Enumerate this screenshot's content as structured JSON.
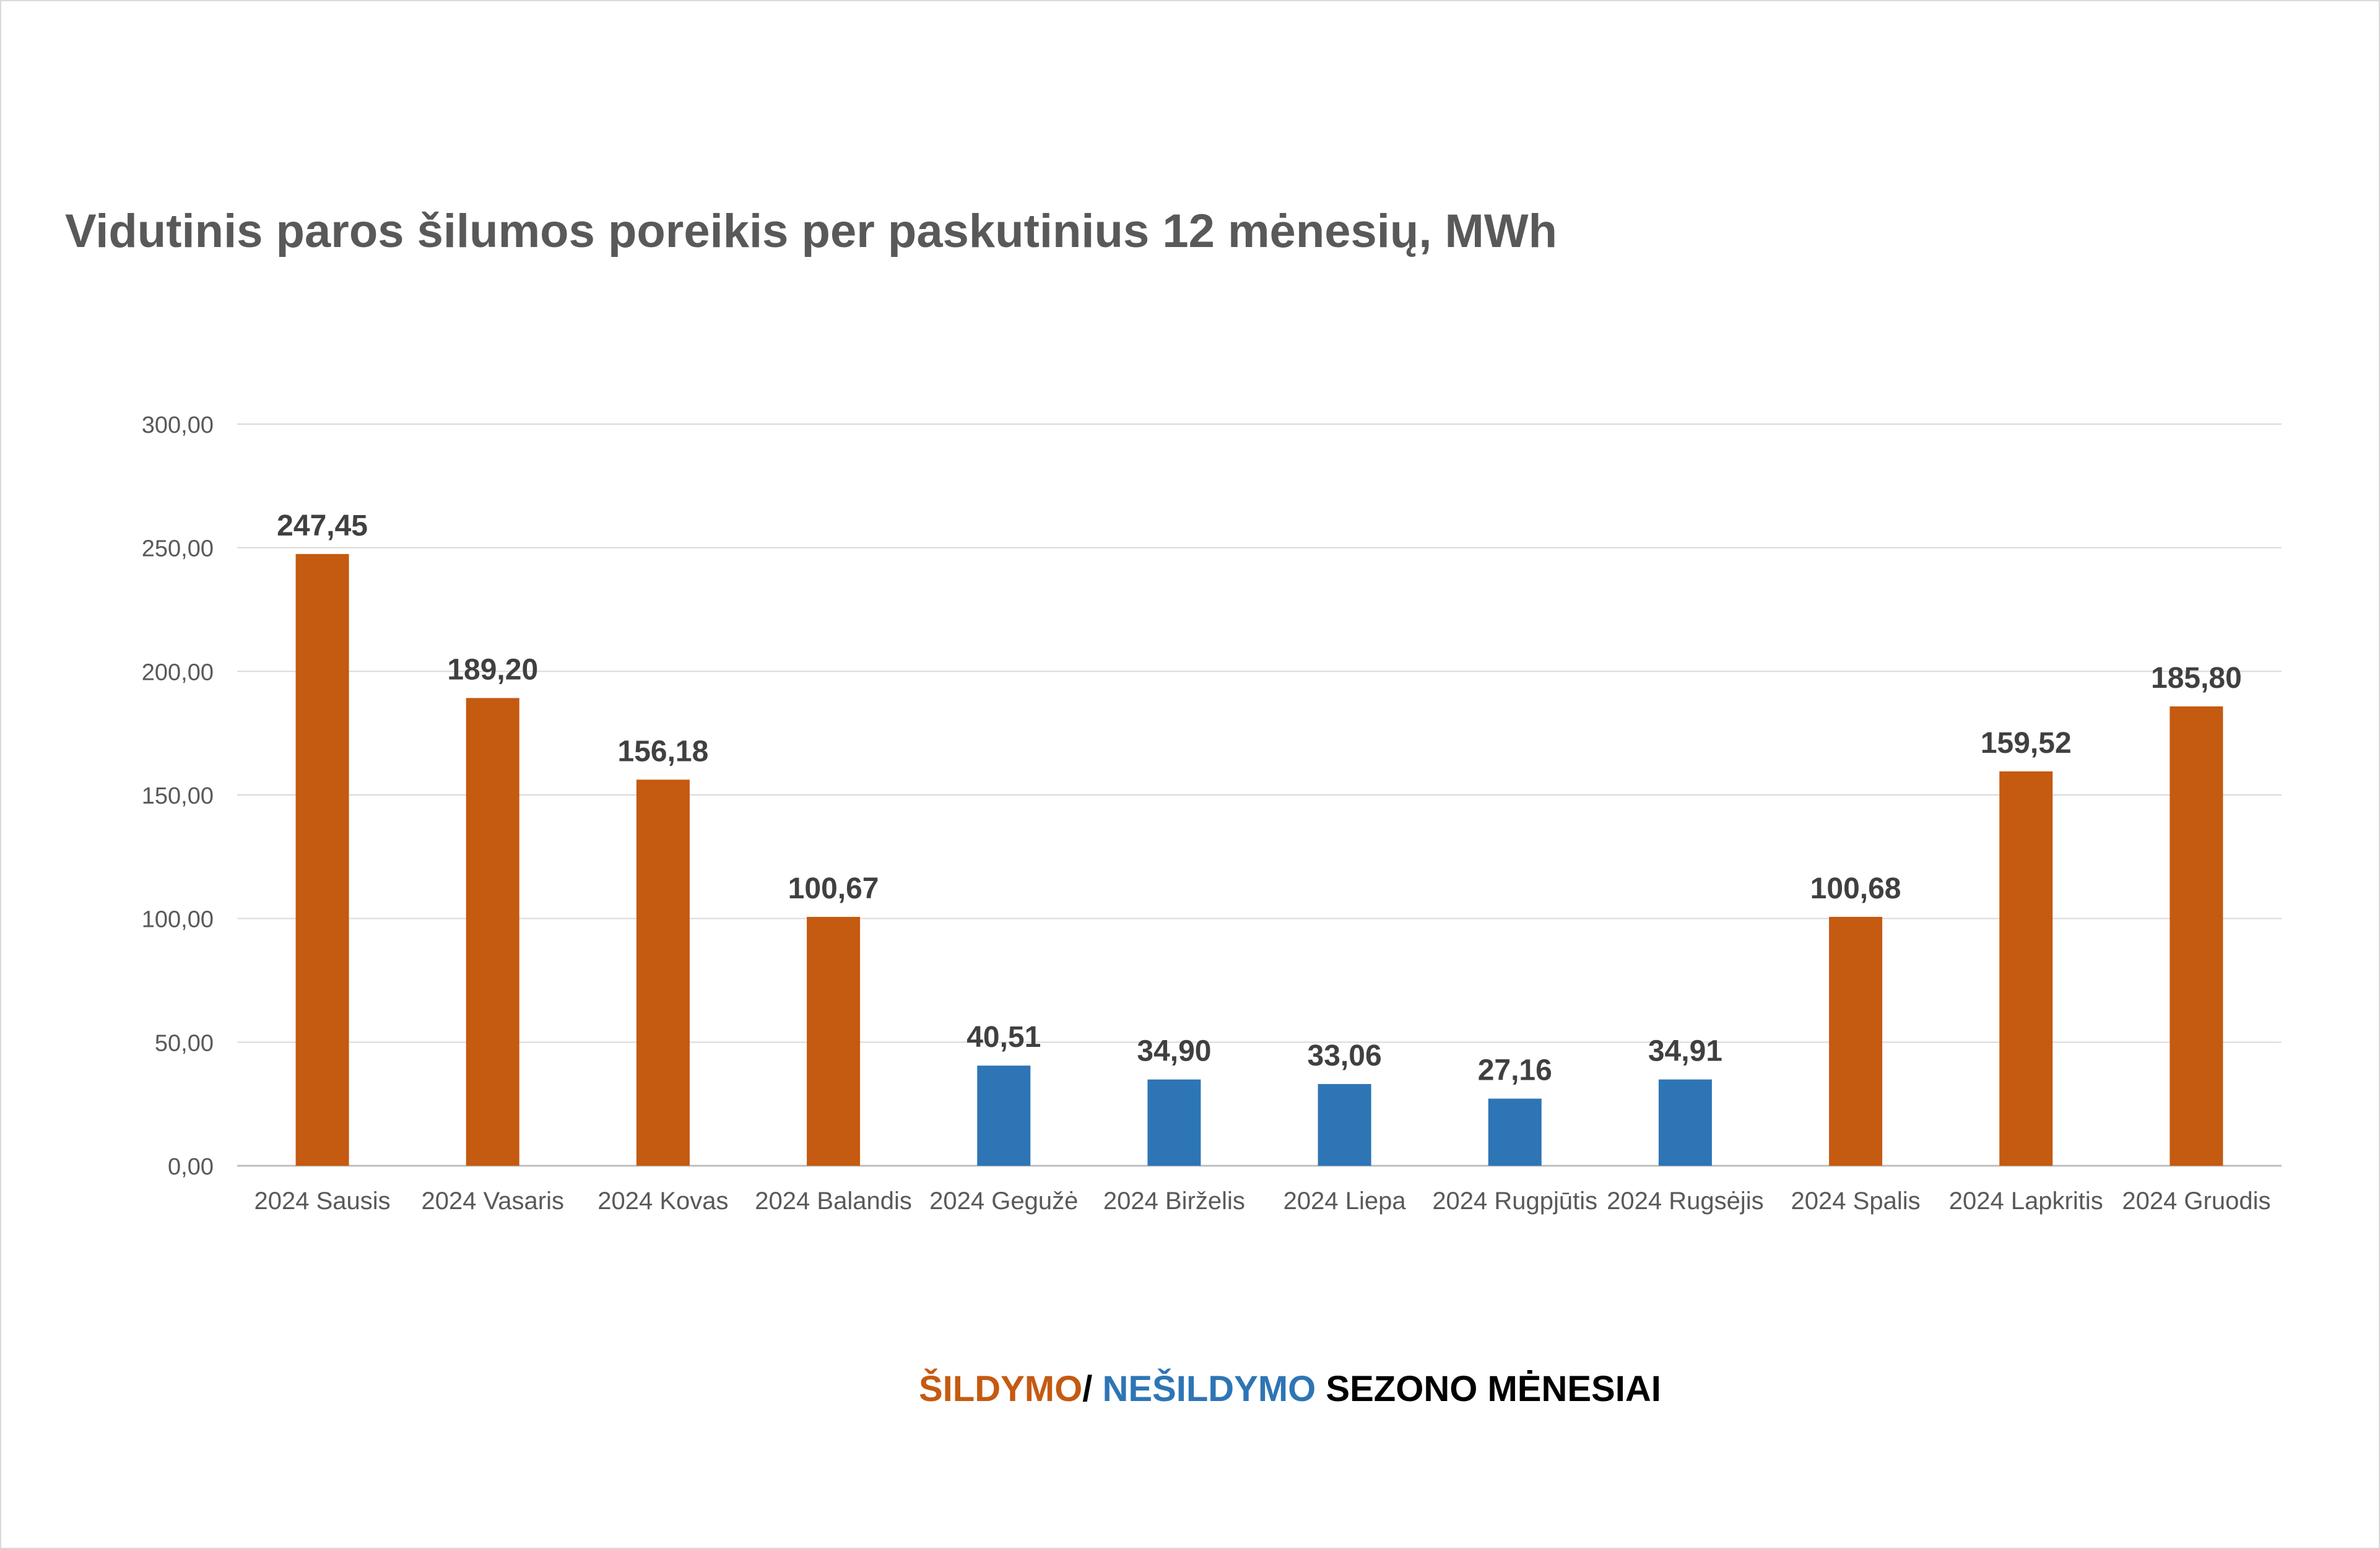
{
  "chart_data": {
    "type": "bar",
    "title": "Vidutinis paros šilumos poreikis per paskutinius 12 mėnesių, MWh",
    "categories": [
      "2024 Sausis",
      "2024 Vasaris",
      "2024 Kovas",
      "2024 Balandis",
      "2024 Gegužė",
      "2024 Birželis",
      "2024 Liepa",
      "2024 Rugpjūtis",
      "2024 Rugsėjis",
      "2024 Spalis",
      "2024 Lapkritis",
      "2024 Gruodis"
    ],
    "values": [
      247.45,
      189.2,
      156.18,
      100.67,
      40.51,
      34.9,
      33.06,
      27.16,
      34.91,
      100.68,
      159.52,
      185.8
    ],
    "value_labels": [
      "247,45",
      "189,20",
      "156,18",
      "100,67",
      "40,51",
      "34,90",
      "33,06",
      "27,16",
      "34,91",
      "100,68",
      "159,52",
      "185,80"
    ],
    "season": [
      "heating",
      "heating",
      "heating",
      "heating",
      "non-heating",
      "non-heating",
      "non-heating",
      "non-heating",
      "non-heating",
      "heating",
      "heating",
      "heating"
    ],
    "colors": {
      "heating": "#c55a11",
      "non-heating": "#2e75b6"
    },
    "ylim": [
      0,
      300
    ],
    "y_ticks": [
      "0,00",
      "50,00",
      "100,00",
      "150,00",
      "200,00",
      "250,00",
      "300,00"
    ],
    "xlabel": "",
    "ylabel": "",
    "grid": true
  },
  "season_legend": {
    "heating_text": "ŠILDYMO",
    "separator": "/",
    "nonheating_text": "NEŠILDYMO",
    "rest_text": "SEZONO MĖNESIAI",
    "heating_color": "#c55a11",
    "nonheating_color": "#2e75b6"
  }
}
